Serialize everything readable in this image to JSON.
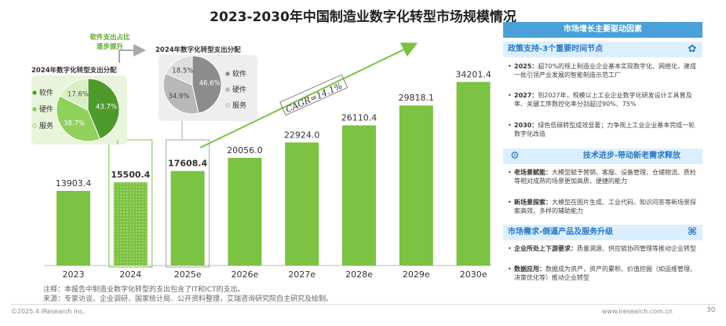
{
  "chart_data": [
    {
      "type": "bar",
      "title": "2023-2030年中国制造业数字化转型市场规模情况",
      "categories": [
        "2023",
        "2024",
        "2025e",
        "2026e",
        "2027e",
        "2028e",
        "2029e",
        "2030e"
      ],
      "values": [
        13903.4,
        15500.4,
        17608.4,
        20056.0,
        22924.0,
        26110.4,
        29818.1,
        34201.4
      ],
      "value_labels": [
        "13903.4",
        "15500.4",
        "17608.4",
        "20056.0",
        "22924.0",
        "26110.4",
        "29818.1",
        "34201.4"
      ],
      "ylim": [
        0,
        36000
      ],
      "annotation": "CAGR=14.1%",
      "colors": {
        "bar": "#7cc243",
        "highlight_box": "#7cc243",
        "arrow": "#7cc243"
      }
    },
    {
      "type": "pie",
      "title": "2024年数字化转型支出分配",
      "labels": [
        "软件",
        "硬件",
        "服务"
      ],
      "values": [
        43.7,
        38.7,
        17.6
      ],
      "value_labels": [
        "43.7%",
        "38.7%",
        "17.6%"
      ],
      "colors": [
        "#4e9a2b",
        "#8fd15a",
        "#d8efc4"
      ],
      "legend": "left"
    },
    {
      "type": "pie",
      "title": "2024年数字化转型支出分配",
      "labels": [
        "软件",
        "硬件",
        "服务"
      ],
      "values": [
        46.6,
        34.9,
        18.5
      ],
      "value_labels": [
        "46.6%",
        "34.9%",
        "18.5%"
      ],
      "colors": [
        "#8c8c8c",
        "#b8b8b8",
        "#dedede"
      ],
      "legend": "right"
    }
  ],
  "shift_label": [
    "软件支出占比",
    "逐步提升"
  ],
  "footnote": {
    "note": "注释：本报告中制造业数字化转型的支出包含了IT和ICT的支出。",
    "source": "来源：专家访谈、企业调研、国家统计局、公开资料整理，艾瑞咨询研究院自主研究及绘制。"
  },
  "copyright": "©2025.4 iResearch Inc.",
  "site": "www.iresearch.com.cn",
  "page_number": "30",
  "panel": {
    "title": "市场增长主要驱动因素",
    "sections": [
      {
        "heading": "政策支持-3个重要时间节点",
        "icon": "settings-icon",
        "items": [
          {
            "label": "2025：",
            "text": "超70%的规上制造业企业基本实现数字化、网络化，建成一批引领产业发展的智能制造示范工厂"
          },
          {
            "label": "2027：",
            "text": "到2027年，规模以上工业企业数字化研发设计工具普及率、关键工序数控化率分别超过90%、75%"
          },
          {
            "label": "2030：",
            "text": "绿色低碳转型成效显著；力争规上工业企业基本完成一轮数字化改造"
          }
        ]
      },
      {
        "heading": "技术进步-带动新老需求释放",
        "icon": "gear-icon",
        "items": [
          {
            "label": "老场景赋能：",
            "text": "大模型赋予营销、客服、设备管理、仓储物流、质检等相对成熟的场景更加高质、便捷的能力"
          },
          {
            "label": "新场景探索：",
            "text": "大模型在图片生成、工业代码、知识问答等新场景探索高效、多样的辅助能力"
          }
        ]
      },
      {
        "heading": "市场需求-倒逼产品及服务升级",
        "icon": "command-icon",
        "items": [
          {
            "label": "企业所处上下游要求：",
            "text": "质量溯源、供应链协同管理等推动企业转型"
          },
          {
            "label": "数据应用：",
            "text": "数据成为资产，资产的累积、价值挖掘（如运维管理、决策优化等）推动企业转型"
          }
        ]
      }
    ]
  }
}
